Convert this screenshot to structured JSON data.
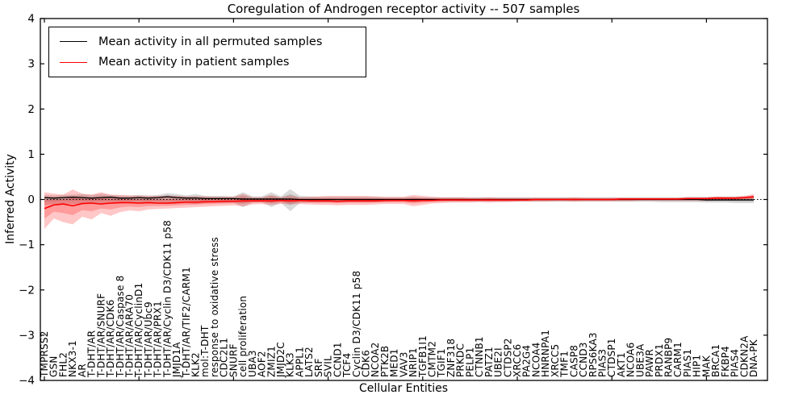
{
  "chart_data": {
    "type": "line",
    "title": "Coregulation of Androgen receptor activity -- 507 samples",
    "xlabel": "Cellular Entities",
    "ylabel": "Inferred Activity",
    "ylim": [
      -4,
      4
    ],
    "y_ticks": [
      4,
      3,
      2,
      1,
      0,
      -1,
      -2,
      -3,
      -4
    ],
    "y_tick_labels": [
      "4",
      "3",
      "2",
      "1",
      "0",
      "−1",
      "−2",
      "−3",
      "−4"
    ],
    "x_major_tick_every": 10,
    "grid": false,
    "zero_line": {
      "style": "dotted",
      "color": "#000000"
    },
    "legend_position": "upper-left",
    "categories": [
      "TMPRSS2",
      "GSN",
      "FHL2",
      "NKX3-1",
      "AR",
      "T-DHT/AR",
      "T-DHT/AR/SNURF",
      "T-DHT/AR/CDK6",
      "T-DHT/AR/Caspase 8",
      "T-DHT/AR/ARA70",
      "T-DHT/AR/CyclinD1",
      "T-DHT/AR/Ubc9",
      "T-DHT/AR/PRX1",
      "T-DHT/AR/Cyclin D3/CDK11 p58",
      "JMJD1A",
      "T-DHT/AR/TIF2/CARM1",
      "KLK2",
      "mol:T-DHT",
      "response to oxidative stress",
      "CDC2L1",
      "SNURF",
      "cell proliferation",
      "UBA3",
      "AOF2",
      "ZMIZ1",
      "JMJD2C",
      "KLK3",
      "APPL1",
      "LATS2",
      "SRF",
      "SVIL",
      "CCND1",
      "TCF4",
      "Cyclin D3/CDK11 p58",
      "CDK6",
      "NCOA2",
      "PTK2B",
      "MED1",
      "VAV3",
      "NRIP1",
      "TGFB1I1",
      "CMTM2",
      "TGIF1",
      "ZNF318",
      "PRKDC",
      "PELP1",
      "CTNNB1",
      "PATZ1",
      "UBE2I",
      "CTDSP2",
      "XRCC6",
      "PA2G4",
      "NCOA4",
      "HNRNPA1",
      "XRCC5",
      "TMF1",
      "CASP8",
      "CCND3",
      "RPS6KA3",
      "PIAS3",
      "CTDSP1",
      "AKT1",
      "NCOA6",
      "UBE3A",
      "PAWR",
      "PRDX1",
      "RANBP9",
      "CARM1",
      "PIAS1",
      "HIP1",
      "MAK",
      "BRCA1",
      "FKBP4",
      "PIAS4",
      "CDKN2A",
      "DNA-PK"
    ],
    "series": [
      {
        "name": "Mean activity in all permuted samples",
        "color": "#000000",
        "values": [
          0.04,
          0.03,
          0.04,
          0.05,
          0.04,
          0.03,
          0.04,
          0.05,
          0.03,
          0.03,
          0.04,
          0.03,
          0.04,
          0.06,
          0.04,
          0.03,
          0.03,
          0.02,
          0.02,
          0.02,
          0.02,
          0.01,
          0.01,
          0.01,
          0.01,
          0.01,
          0.01,
          0.0,
          0.0,
          0.0,
          0.0,
          0.0,
          0.0,
          0.0,
          0.0,
          0.0,
          0.0,
          0.0,
          0.0,
          0.0,
          0.0,
          0.0,
          0.0,
          0.0,
          0.0,
          0.0,
          0.0,
          0.0,
          0.0,
          0.0,
          0.0,
          0.0,
          0.0,
          0.0,
          0.0,
          0.0,
          0.0,
          0.0,
          0.0,
          0.0,
          0.0,
          0.0,
          0.0,
          0.0,
          0.0,
          0.0,
          0.0,
          0.0,
          0.0,
          0.0,
          -0.01,
          -0.01,
          -0.01,
          -0.01,
          -0.01,
          -0.01
        ]
      },
      {
        "name": "Mean activity in patient samples",
        "color": "#ff0000",
        "values": [
          -0.2,
          -0.12,
          -0.1,
          -0.14,
          -0.09,
          -0.08,
          -0.1,
          -0.08,
          -0.07,
          -0.07,
          -0.08,
          -0.07,
          -0.08,
          -0.08,
          -0.07,
          -0.06,
          -0.06,
          -0.05,
          -0.05,
          -0.04,
          -0.04,
          -0.03,
          -0.03,
          -0.03,
          -0.03,
          -0.02,
          -0.03,
          -0.02,
          -0.03,
          -0.03,
          -0.03,
          -0.04,
          -0.03,
          -0.03,
          -0.03,
          -0.03,
          -0.02,
          -0.02,
          -0.02,
          -0.03,
          -0.02,
          -0.02,
          -0.01,
          -0.01,
          -0.01,
          -0.01,
          -0.01,
          -0.01,
          -0.01,
          -0.01,
          -0.01,
          -0.01,
          0.0,
          0.0,
          0.0,
          0.0,
          0.0,
          0.0,
          0.0,
          0.0,
          0.0,
          0.01,
          0.01,
          0.01,
          0.01,
          0.01,
          0.01,
          0.01,
          0.02,
          0.02,
          0.02,
          0.03,
          0.03,
          0.03,
          0.04,
          0.06
        ]
      }
    ],
    "bands": [
      {
        "name": "permuted samples spread",
        "color": "#808080",
        "opacity": 0.3,
        "center_series": 0,
        "upper": [
          0.1,
          0.09,
          0.1,
          0.11,
          0.12,
          0.1,
          0.13,
          0.1,
          0.09,
          0.09,
          0.1,
          0.09,
          0.1,
          0.14,
          0.12,
          0.09,
          0.12,
          0.08,
          0.08,
          0.08,
          0.07,
          0.16,
          0.07,
          0.07,
          0.16,
          0.07,
          0.23,
          0.08,
          0.07,
          0.06,
          0.06,
          0.06,
          0.06,
          0.06,
          0.06,
          0.06,
          0.05,
          0.05,
          0.05,
          0.06,
          0.05,
          0.05,
          0.05,
          0.05,
          0.05,
          0.05,
          0.05,
          0.05,
          0.05,
          0.05,
          0.05,
          0.05,
          0.05,
          0.05,
          0.05,
          0.05,
          0.05,
          0.05,
          0.05,
          0.05,
          0.05,
          0.05,
          0.05,
          0.05,
          0.05,
          0.05,
          0.05,
          0.05,
          0.06,
          0.06,
          0.06,
          0.06,
          0.07,
          0.07,
          0.07,
          0.08
        ],
        "lower": [
          -0.12,
          -0.1,
          -0.09,
          -0.1,
          -0.09,
          -0.1,
          -0.09,
          -0.1,
          -0.09,
          -0.08,
          -0.09,
          -0.08,
          -0.09,
          -0.1,
          -0.09,
          -0.08,
          -0.1,
          -0.08,
          -0.07,
          -0.08,
          -0.07,
          -0.17,
          -0.07,
          -0.06,
          -0.17,
          -0.07,
          -0.26,
          -0.08,
          -0.07,
          -0.07,
          -0.06,
          -0.06,
          -0.06,
          -0.06,
          -0.06,
          -0.06,
          -0.06,
          -0.05,
          -0.05,
          -0.06,
          -0.05,
          -0.05,
          -0.05,
          -0.05,
          -0.05,
          -0.05,
          -0.05,
          -0.05,
          -0.05,
          -0.05,
          -0.05,
          -0.05,
          -0.05,
          -0.05,
          -0.05,
          -0.05,
          -0.05,
          -0.05,
          -0.05,
          -0.05,
          -0.05,
          -0.05,
          -0.05,
          -0.05,
          -0.05,
          -0.06,
          -0.06,
          -0.06,
          -0.06,
          -0.06,
          -0.07,
          -0.07,
          -0.07,
          -0.08,
          -0.08,
          -0.08
        ]
      },
      {
        "name": "patient samples spread",
        "color": "#ff0000",
        "opacity": 0.22,
        "center_series": 1,
        "upper": [
          0.16,
          0.13,
          0.11,
          0.22,
          0.13,
          0.11,
          0.16,
          0.11,
          0.1,
          0.09,
          0.09,
          0.08,
          0.08,
          0.08,
          0.08,
          0.07,
          0.07,
          0.07,
          0.06,
          0.06,
          0.06,
          0.12,
          0.05,
          0.05,
          0.1,
          0.05,
          0.09,
          0.05,
          0.06,
          0.07,
          0.08,
          0.08,
          0.08,
          0.08,
          0.08,
          0.07,
          0.06,
          0.06,
          0.06,
          0.1,
          0.08,
          0.06,
          0.05,
          0.05,
          0.05,
          0.04,
          0.04,
          0.05,
          0.04,
          0.04,
          0.04,
          0.04,
          0.04,
          0.04,
          0.04,
          0.04,
          0.05,
          0.04,
          0.04,
          0.04,
          0.04,
          0.04,
          0.04,
          0.04,
          0.04,
          0.04,
          0.04,
          0.04,
          0.05,
          0.05,
          0.05,
          0.07,
          0.06,
          0.06,
          0.08,
          0.12
        ],
        "lower": [
          -0.65,
          -0.42,
          -0.5,
          -0.55,
          -0.38,
          -0.44,
          -0.3,
          -0.36,
          -0.28,
          -0.24,
          -0.26,
          -0.22,
          -0.21,
          -0.2,
          -0.19,
          -0.18,
          -0.17,
          -0.16,
          -0.15,
          -0.14,
          -0.13,
          -0.15,
          -0.11,
          -0.1,
          -0.12,
          -0.1,
          -0.11,
          -0.1,
          -0.11,
          -0.12,
          -0.12,
          -0.13,
          -0.12,
          -0.12,
          -0.12,
          -0.11,
          -0.1,
          -0.1,
          -0.1,
          -0.15,
          -0.12,
          -0.09,
          -0.08,
          -0.07,
          -0.07,
          -0.07,
          -0.06,
          -0.07,
          -0.06,
          -0.06,
          -0.05,
          -0.05,
          -0.05,
          -0.05,
          -0.04,
          -0.04,
          -0.05,
          -0.04,
          -0.04,
          -0.04,
          -0.04,
          -0.04,
          -0.04,
          -0.03,
          -0.03,
          -0.03,
          -0.03,
          -0.03,
          -0.03,
          -0.03,
          -0.03,
          -0.02,
          -0.02,
          -0.02,
          -0.01,
          -0.01
        ]
      }
    ]
  }
}
